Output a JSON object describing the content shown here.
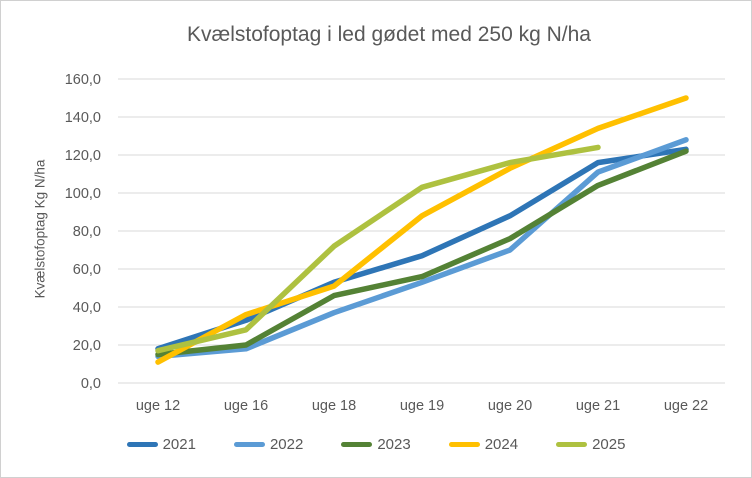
{
  "window": {
    "background": "#FFFFFF",
    "frame_border_color": "#D0D0D0"
  },
  "chart_data": {
    "type": "line",
    "title": "Kvælstofoptag i led gødet med 250 kg N/ha",
    "xlabel": "",
    "ylabel": "Kvælstofoptag Kg N/ha",
    "categories": [
      "uge 12",
      "uge 16",
      "uge 18",
      "uge 19",
      "uge 20",
      "uge 21",
      "uge 22"
    ],
    "ylim": [
      0,
      160
    ],
    "ytick_step": 20,
    "ytick_labels": [
      "0,0",
      "20,0",
      "40,0",
      "60,0",
      "80,0",
      "100,0",
      "120,0",
      "140,0",
      "160,0"
    ],
    "grid": true,
    "gridline_color": "#D9D9D9",
    "text_color": "#595959",
    "legend_position": "bottom",
    "series": [
      {
        "name": "2021",
        "color": "#2E75B6",
        "values": [
          18,
          33,
          53,
          67,
          88,
          116,
          123
        ]
      },
      {
        "name": "2022",
        "color": "#5B9BD5",
        "values": [
          14,
          18,
          37,
          53,
          70,
          111,
          128
        ]
      },
      {
        "name": "2023",
        "color": "#548235",
        "values": [
          15,
          20,
          46,
          56,
          76,
          104,
          122
        ]
      },
      {
        "name": "2024",
        "color": "#FFC000",
        "values": [
          11,
          36,
          51,
          88,
          113,
          134,
          150
        ]
      },
      {
        "name": "2025",
        "color": "#AEC140",
        "values": [
          17,
          28,
          72,
          103,
          116,
          124,
          null
        ]
      }
    ]
  }
}
